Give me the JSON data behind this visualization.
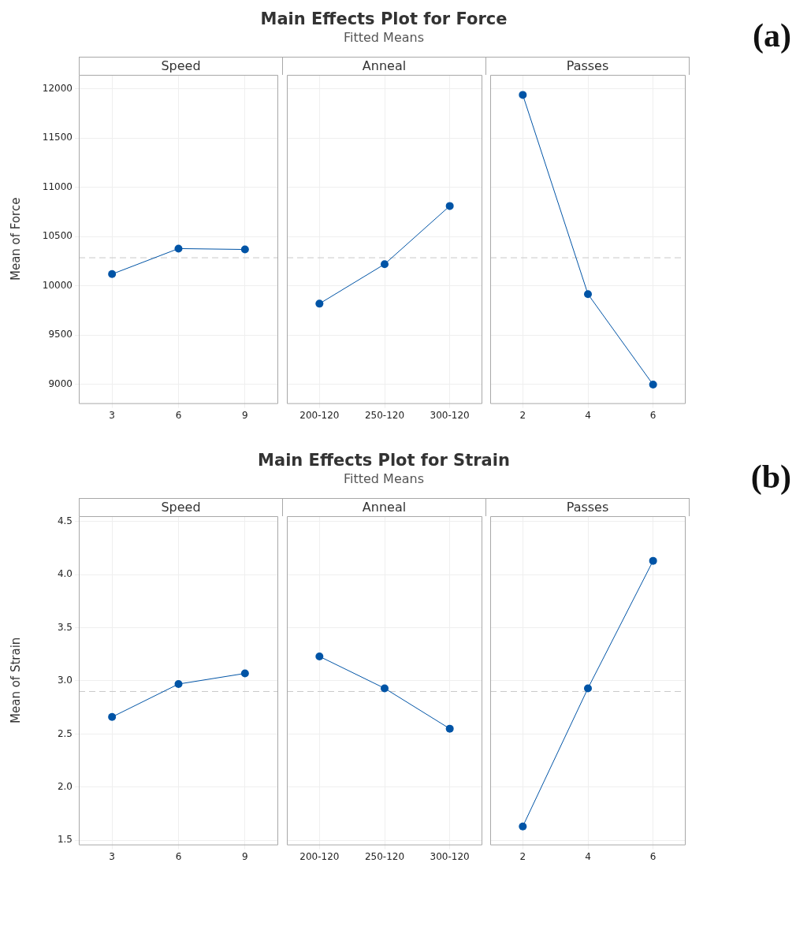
{
  "chart_data": [
    {
      "type": "other",
      "title": "Main Effects Plot for Force",
      "subtitle": "Fitted Means",
      "annotations": [
        "(a)"
      ]
    },
    {
      "type": "line",
      "xlabel": "Speed",
      "ylabel": "Mean of Force",
      "categories": [
        "3",
        "6",
        "9"
      ],
      "values": [
        10119,
        10378,
        10369
      ],
      "color": "#0054a6",
      "ylim": [
        8810,
        12140
      ],
      "yticks": [
        9000,
        9500,
        10000,
        10500,
        11000,
        11500,
        12000
      ],
      "grid": true,
      "marker": "circle",
      "ref_lines": [
        {
          "axis": "y",
          "value": 10285,
          "color": "#c8c8c8",
          "line_style": "dashed"
        }
      ]
    },
    {
      "type": "line",
      "xlabel": "Anneal",
      "categories": [
        "200-120",
        "250-120",
        "300-120"
      ],
      "values": [
        9819,
        10220,
        10810
      ],
      "color": "#0054a6",
      "ylim": [
        8810,
        12140
      ],
      "yticks": [
        9000,
        9500,
        10000,
        10500,
        11000,
        11500,
        12000
      ],
      "grid": true,
      "marker": "circle",
      "tick_labels": "x",
      "ref_lines": [
        {
          "axis": "y",
          "value": 10285,
          "color": "#c8c8c8",
          "line_style": "dashed"
        }
      ]
    },
    {
      "type": "line",
      "xlabel": "Passes",
      "categories": [
        "2",
        "4",
        "6"
      ],
      "values": [
        11937,
        9916,
        8998
      ],
      "color": "#0054a6",
      "ylim": [
        8810,
        12140
      ],
      "yticks": [
        9000,
        9500,
        10000,
        10500,
        11000,
        11500,
        12000
      ],
      "grid": true,
      "marker": "circle",
      "tick_labels": "x",
      "ref_lines": [
        {
          "axis": "y",
          "value": 10285,
          "color": "#c8c8c8",
          "line_style": "dashed"
        }
      ]
    },
    {
      "type": "other",
      "title": "Main Effects Plot for Strain",
      "subtitle": "Fitted Means",
      "annotations": [
        "(b)"
      ]
    },
    {
      "type": "line",
      "xlabel": "Speed",
      "ylabel": "Mean of Strain",
      "categories": [
        "3",
        "6",
        "9"
      ],
      "values": [
        2.66,
        2.97,
        3.07
      ],
      "color": "#0054a6",
      "ylim": [
        1.46,
        4.55
      ],
      "yticks": [
        {
          "value": 1.5,
          "label": "1.5"
        },
        {
          "value": 2,
          "label": "2.0"
        },
        {
          "value": 2.5,
          "label": "2.5"
        },
        {
          "value": 3,
          "label": "3.0"
        },
        {
          "value": 3.5,
          "label": "3.5"
        },
        {
          "value": 4,
          "label": "4.0"
        },
        {
          "value": 4.5,
          "label": "4.5"
        }
      ],
      "grid": true,
      "marker": "circle",
      "ref_lines": [
        {
          "axis": "y",
          "value": 2.9,
          "color": "#c8c8c8",
          "line_style": "dashed"
        }
      ]
    },
    {
      "type": "line",
      "xlabel": "Anneal",
      "categories": [
        "200-120",
        "250-120",
        "300-120"
      ],
      "values": [
        3.23,
        2.93,
        2.55
      ],
      "color": "#0054a6",
      "ylim": [
        1.46,
        4.55
      ],
      "yticks": [
        1.5,
        2,
        2.5,
        3,
        3.5,
        4,
        4.5
      ],
      "grid": true,
      "marker": "circle",
      "tick_labels": "x",
      "ref_lines": [
        {
          "axis": "y",
          "value": 2.9,
          "color": "#c8c8c8",
          "line_style": "dashed"
        }
      ]
    },
    {
      "type": "line",
      "xlabel": "Passes",
      "categories": [
        "2",
        "4",
        "6"
      ],
      "values": [
        1.63,
        2.93,
        4.13
      ],
      "color": "#0054a6",
      "ylim": [
        1.46,
        4.55
      ],
      "yticks": [
        1.5,
        2,
        2.5,
        3,
        3.5,
        4,
        4.5
      ],
      "grid": true,
      "marker": "circle",
      "tick_labels": "x",
      "ref_lines": [
        {
          "axis": "y",
          "value": 2.9,
          "color": "#c8c8c8",
          "line_style": "dashed"
        }
      ]
    }
  ]
}
